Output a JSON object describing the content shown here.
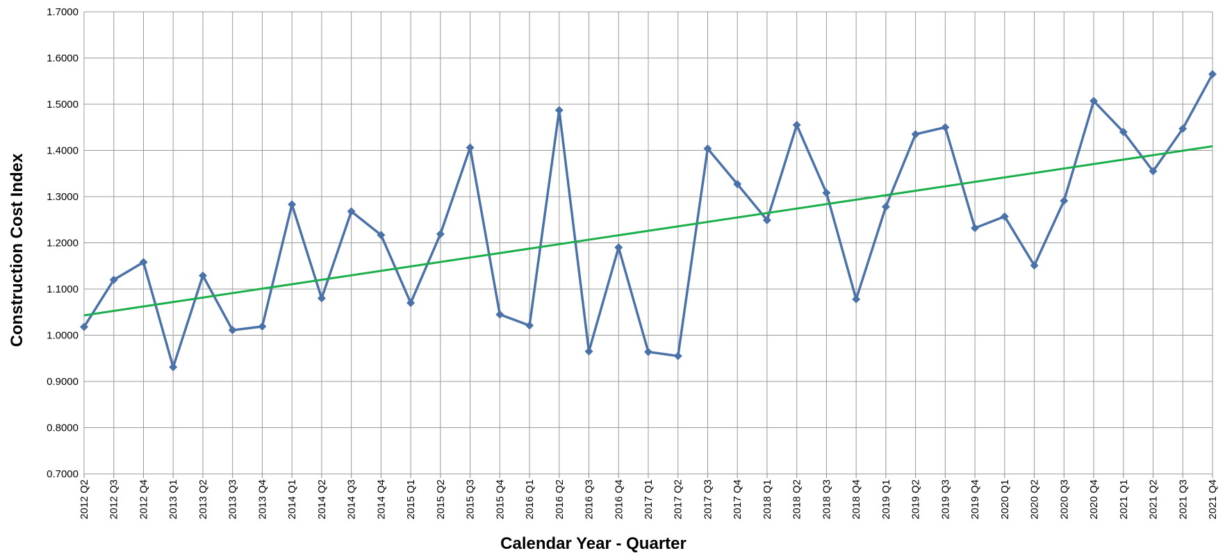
{
  "chart_data": {
    "type": "line",
    "x_label": "Calendar Year - Quarter",
    "y_label": "Construction Cost Index",
    "categories": [
      "2012 Q2",
      "2012 Q3",
      "2012 Q4",
      "2013 Q1",
      "2013 Q2",
      "2013 Q3",
      "2013 Q4",
      "2014 Q1",
      "2014 Q2",
      "2014 Q3",
      "2014 Q4",
      "2015 Q1",
      "2015 Q2",
      "2015 Q3",
      "2015 Q4",
      "2016 Q1",
      "2016 Q2",
      "2016 Q3",
      "2016 Q4",
      "2017 Q1",
      "2017 Q2",
      "2017 Q3",
      "2017 Q4",
      "2018 Q1",
      "2018 Q2",
      "2018 Q3",
      "2018 Q4",
      "2019 Q1",
      "2019 Q2",
      "2019 Q3",
      "2019 Q4",
      "2020 Q1",
      "2020 Q2",
      "2020 Q3",
      "2020 Q4",
      "2021 Q1",
      "2021 Q2",
      "2021 Q3",
      "2021 Q4"
    ],
    "values": [
      1.018,
      1.12,
      1.158,
      0.931,
      1.129,
      1.011,
      1.019,
      1.283,
      1.08,
      1.268,
      1.217,
      1.07,
      1.219,
      1.406,
      1.045,
      1.021,
      1.487,
      0.965,
      1.19,
      0.964,
      0.955,
      1.404,
      1.327,
      1.249,
      1.455,
      1.308,
      1.078,
      1.278,
      1.435,
      1.45,
      1.232,
      1.257,
      1.151,
      1.291,
      1.507,
      1.44,
      1.355,
      1.447,
      1.565
    ],
    "color": "#4a72a8",
    "trendline": {
      "start": 1.043,
      "end": 1.409,
      "color": "#1aaf4b"
    },
    "ylim": [
      0.7,
      1.7
    ],
    "yticks": [
      {
        "value": 0.7,
        "label": "0.7000"
      },
      {
        "value": 0.8,
        "label": "0.8000"
      },
      {
        "value": 0.9,
        "label": "0.9000"
      },
      {
        "value": 1.0,
        "label": "1.0000"
      },
      {
        "value": 1.1,
        "label": "1.1000"
      },
      {
        "value": 1.2,
        "label": "1.2000"
      },
      {
        "value": 1.3,
        "label": "1.3000"
      },
      {
        "value": 1.4,
        "label": "1.4000"
      },
      {
        "value": 1.5,
        "label": "1.5000"
      },
      {
        "value": 1.6,
        "label": "1.6000"
      },
      {
        "value": 1.7,
        "label": "1.7000"
      }
    ],
    "grid": true
  }
}
